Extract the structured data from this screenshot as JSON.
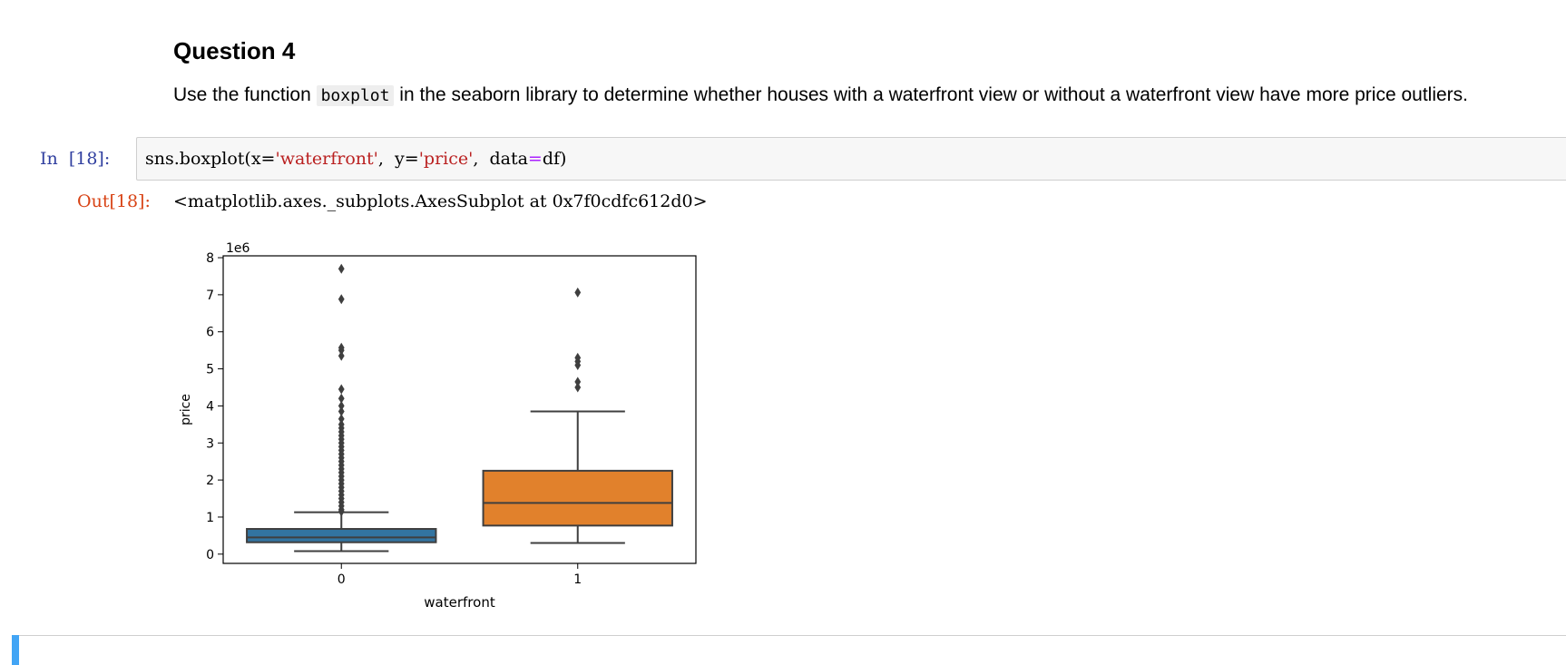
{
  "markdown": {
    "heading": "Question 4",
    "text_before": "Use the function ",
    "code": "boxplot",
    "text_after": " in the seaborn library to determine whether houses with a waterfront view or without a waterfront view have more price outliers."
  },
  "input_cell": {
    "prompt": "In  [18]:",
    "code_tokens": [
      "sns.boxplot(x=",
      "'waterfront'",
      ",  y=",
      "'price'",
      ",  data",
      "=",
      "df)"
    ]
  },
  "output_cell": {
    "prompt": "Out[18]:",
    "text": "<matplotlib.axes._subplots.AxesSubplot at 0x7f0cdfc612d0>"
  },
  "colors": {
    "box_0": "#3274a1",
    "box_1": "#e1812c",
    "in_prompt": "#303f9f",
    "out_prompt": "#d84315",
    "cell_bar": "#42a5f5"
  },
  "chart_data": {
    "type": "box",
    "xlabel": "waterfront",
    "ylabel": "price",
    "offset_label": "1e6",
    "categories": [
      "0",
      "1"
    ],
    "ylim": [
      -0.25,
      8.05
    ],
    "yticks": [
      0,
      1,
      2,
      3,
      4,
      5,
      6,
      7,
      8
    ],
    "grid": false,
    "boxes": [
      {
        "category": "0",
        "whisker_low": 0.08,
        "q1": 0.32,
        "median": 0.45,
        "q3": 0.68,
        "whisker_high": 1.13,
        "outliers": [
          1.15,
          1.2,
          1.3,
          1.4,
          1.5,
          1.6,
          1.7,
          1.8,
          1.9,
          2.0,
          2.1,
          2.2,
          2.3,
          2.4,
          2.5,
          2.6,
          2.7,
          2.8,
          2.9,
          3.0,
          3.1,
          3.2,
          3.3,
          3.4,
          3.5,
          3.65,
          3.85,
          4.0,
          4.2,
          4.45,
          5.35,
          5.5,
          5.57,
          6.88,
          7.7
        ]
      },
      {
        "category": "1",
        "whisker_low": 0.3,
        "q1": 0.77,
        "median": 1.38,
        "q3": 2.25,
        "whisker_high": 3.85,
        "outliers": [
          4.5,
          4.65,
          5.1,
          5.2,
          5.3,
          7.06
        ]
      }
    ]
  }
}
